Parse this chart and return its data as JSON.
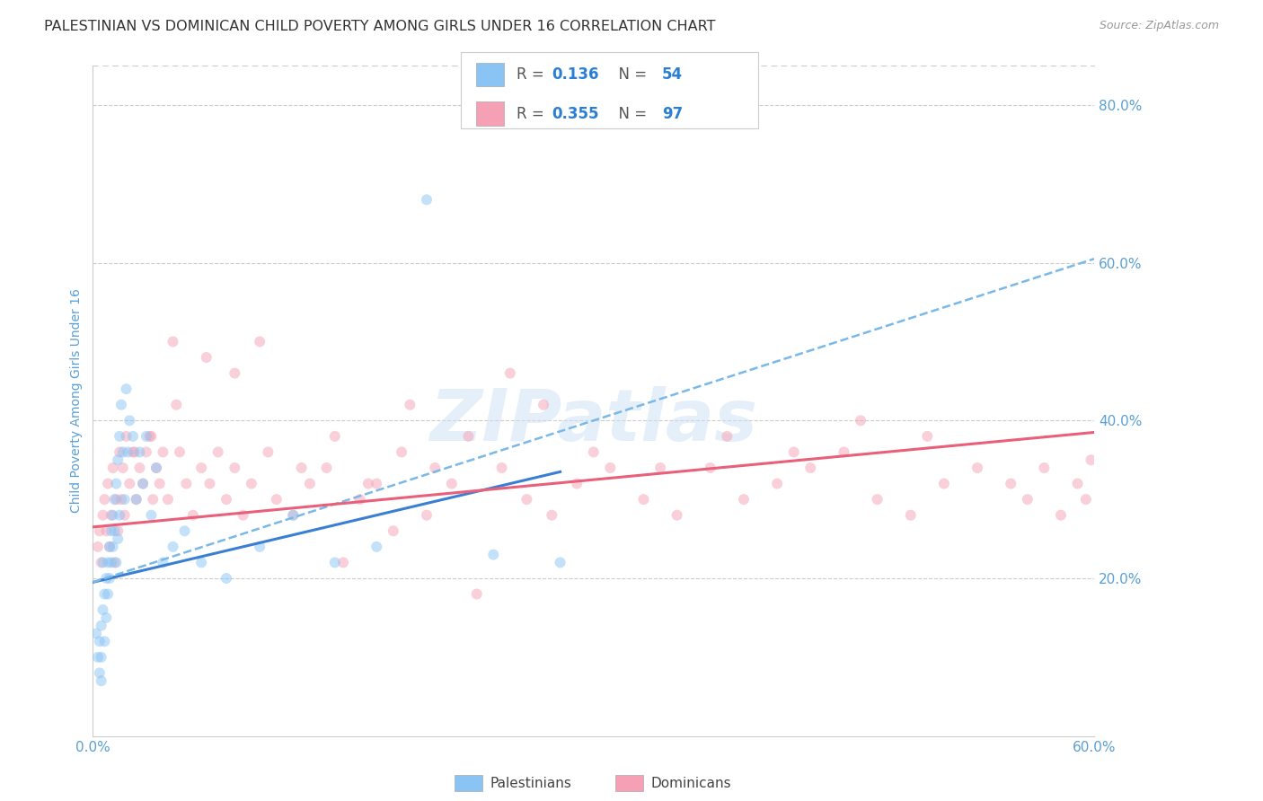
{
  "title": "PALESTINIAN VS DOMINICAN CHILD POVERTY AMONG GIRLS UNDER 16 CORRELATION CHART",
  "source": "Source: ZipAtlas.com",
  "ylabel": "Child Poverty Among Girls Under 16",
  "xlim": [
    0.0,
    0.6
  ],
  "ylim": [
    0.0,
    0.85
  ],
  "ytick_vals_right": [
    0.8,
    0.6,
    0.4,
    0.2
  ],
  "ytick_labels_right": [
    "80.0%",
    "60.0%",
    "40.0%",
    "20.0%"
  ],
  "xtick_positions": [
    0.0,
    0.15,
    0.3,
    0.45,
    0.6
  ],
  "xtick_labels": [
    "0.0%",
    "",
    "",
    "",
    "60.0%"
  ],
  "palestinians": {
    "x": [
      0.002,
      0.003,
      0.004,
      0.004,
      0.005,
      0.005,
      0.005,
      0.006,
      0.006,
      0.007,
      0.007,
      0.008,
      0.008,
      0.009,
      0.009,
      0.01,
      0.01,
      0.011,
      0.011,
      0.012,
      0.012,
      0.013,
      0.013,
      0.014,
      0.014,
      0.015,
      0.015,
      0.016,
      0.016,
      0.017,
      0.018,
      0.019,
      0.02,
      0.021,
      0.022,
      0.024,
      0.026,
      0.028,
      0.03,
      0.032,
      0.035,
      0.038,
      0.042,
      0.048,
      0.055,
      0.065,
      0.08,
      0.1,
      0.12,
      0.145,
      0.17,
      0.2,
      0.24,
      0.28
    ],
    "y": [
      0.13,
      0.1,
      0.08,
      0.12,
      0.14,
      0.1,
      0.07,
      0.22,
      0.16,
      0.18,
      0.12,
      0.2,
      0.15,
      0.22,
      0.18,
      0.24,
      0.2,
      0.26,
      0.22,
      0.28,
      0.24,
      0.3,
      0.26,
      0.32,
      0.22,
      0.35,
      0.25,
      0.38,
      0.28,
      0.42,
      0.36,
      0.3,
      0.44,
      0.36,
      0.4,
      0.38,
      0.3,
      0.36,
      0.32,
      0.38,
      0.28,
      0.34,
      0.22,
      0.24,
      0.26,
      0.22,
      0.2,
      0.24,
      0.28,
      0.22,
      0.24,
      0.68,
      0.23,
      0.22
    ]
  },
  "dominicans": {
    "x": [
      0.003,
      0.004,
      0.005,
      0.006,
      0.007,
      0.008,
      0.009,
      0.01,
      0.011,
      0.012,
      0.013,
      0.014,
      0.015,
      0.016,
      0.017,
      0.018,
      0.019,
      0.02,
      0.022,
      0.024,
      0.026,
      0.028,
      0.03,
      0.032,
      0.034,
      0.036,
      0.038,
      0.04,
      0.042,
      0.045,
      0.048,
      0.052,
      0.056,
      0.06,
      0.065,
      0.07,
      0.075,
      0.08,
      0.085,
      0.09,
      0.095,
      0.1,
      0.11,
      0.12,
      0.13,
      0.14,
      0.15,
      0.16,
      0.17,
      0.18,
      0.19,
      0.2,
      0.215,
      0.23,
      0.245,
      0.26,
      0.275,
      0.29,
      0.31,
      0.33,
      0.35,
      0.37,
      0.39,
      0.41,
      0.43,
      0.45,
      0.47,
      0.49,
      0.51,
      0.53,
      0.55,
      0.56,
      0.57,
      0.58,
      0.59,
      0.595,
      0.598,
      0.025,
      0.035,
      0.05,
      0.068,
      0.085,
      0.105,
      0.125,
      0.145,
      0.165,
      0.185,
      0.205,
      0.225,
      0.25,
      0.27,
      0.3,
      0.34,
      0.38,
      0.42,
      0.46,
      0.5
    ],
    "y": [
      0.24,
      0.26,
      0.22,
      0.28,
      0.3,
      0.26,
      0.32,
      0.24,
      0.28,
      0.34,
      0.22,
      0.3,
      0.26,
      0.36,
      0.3,
      0.34,
      0.28,
      0.38,
      0.32,
      0.36,
      0.3,
      0.34,
      0.32,
      0.36,
      0.38,
      0.3,
      0.34,
      0.32,
      0.36,
      0.3,
      0.5,
      0.36,
      0.32,
      0.28,
      0.34,
      0.32,
      0.36,
      0.3,
      0.34,
      0.28,
      0.32,
      0.5,
      0.3,
      0.28,
      0.32,
      0.34,
      0.22,
      0.3,
      0.32,
      0.26,
      0.42,
      0.28,
      0.32,
      0.18,
      0.34,
      0.3,
      0.28,
      0.32,
      0.34,
      0.3,
      0.28,
      0.34,
      0.3,
      0.32,
      0.34,
      0.36,
      0.3,
      0.28,
      0.32,
      0.34,
      0.32,
      0.3,
      0.34,
      0.28,
      0.32,
      0.3,
      0.35,
      0.36,
      0.38,
      0.42,
      0.48,
      0.46,
      0.36,
      0.34,
      0.38,
      0.32,
      0.36,
      0.34,
      0.38,
      0.46,
      0.42,
      0.36,
      0.34,
      0.38,
      0.36,
      0.4,
      0.38
    ]
  },
  "pal_line_solid": {
    "x0": 0.0,
    "x1": 0.28,
    "y0": 0.195,
    "y1": 0.335
  },
  "pal_line_dash": {
    "x0": 0.0,
    "x1": 0.6,
    "y0": 0.195,
    "y1": 0.605
  },
  "dom_line": {
    "x0": 0.0,
    "x1": 0.6,
    "y0": 0.265,
    "y1": 0.385
  },
  "watermark": "ZIPatlas",
  "dot_size": 75,
  "dot_alpha": 0.5,
  "pal_color": "#89c4f4",
  "dom_color": "#f5a0b5",
  "line_color_pal_solid": "#3a7fd4",
  "line_color_pal_dash": "#7ab8e8",
  "line_color_dom": "#e8607a",
  "grid_color": "#cccccc",
  "title_color": "#333333",
  "axis_label_color": "#5a9fd4",
  "tick_color": "#5a9fd4",
  "background_color": "#ffffff",
  "title_fontsize": 11.5,
  "axis_label_fontsize": 10,
  "legend_r_color": "#555555",
  "legend_val_color": "#2a7fd4"
}
